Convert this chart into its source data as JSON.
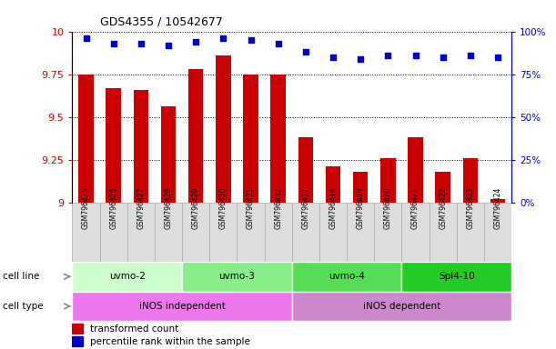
{
  "title": "GDS4355 / 10542677",
  "samples": [
    "GSM796425",
    "GSM796426",
    "GSM796427",
    "GSM796428",
    "GSM796429",
    "GSM796430",
    "GSM796431",
    "GSM796432",
    "GSM796417",
    "GSM796418",
    "GSM796419",
    "GSM796420",
    "GSM796421",
    "GSM796422",
    "GSM796423",
    "GSM796424"
  ],
  "red_values": [
    9.75,
    9.67,
    9.66,
    9.56,
    9.78,
    9.86,
    9.75,
    9.75,
    9.38,
    9.21,
    9.18,
    9.26,
    9.38,
    9.18,
    9.26,
    9.02
  ],
  "blue_values": [
    96,
    93,
    93,
    92,
    94,
    96,
    95,
    93,
    88,
    85,
    84,
    86,
    86,
    85,
    86,
    85
  ],
  "ymin": 9.0,
  "ymax": 10.0,
  "y2min": 0,
  "y2max": 100,
  "yticks": [
    9.0,
    9.25,
    9.5,
    9.75,
    10.0
  ],
  "y2ticks": [
    0,
    25,
    50,
    75,
    100
  ],
  "ytick_labels": [
    "9",
    "9.25",
    "9.5",
    "9.75",
    "10"
  ],
  "y2tick_labels": [
    "0%",
    "25%",
    "50%",
    "75%",
    "100%"
  ],
  "cell_lines": [
    {
      "label": "uvmo-2",
      "start": 0,
      "end": 3,
      "color": "#ccffcc"
    },
    {
      "label": "uvmo-3",
      "start": 4,
      "end": 7,
      "color": "#88ee88"
    },
    {
      "label": "uvmo-4",
      "start": 8,
      "end": 11,
      "color": "#55dd55"
    },
    {
      "label": "Spl4-10",
      "start": 12,
      "end": 15,
      "color": "#22cc22"
    }
  ],
  "cell_types": [
    {
      "label": "iNOS independent",
      "start": 0,
      "end": 7,
      "color": "#ee77ee"
    },
    {
      "label": "iNOS dependent",
      "start": 8,
      "end": 15,
      "color": "#cc88cc"
    }
  ],
  "bar_color": "#cc0000",
  "dot_color": "#0000cc",
  "grid_color": "#000000",
  "sample_box_color": "#dddddd",
  "sample_box_edge": "#aaaaaa",
  "legend_red": "transformed count",
  "legend_blue": "percentile rank within the sample",
  "cell_line_label": "cell line",
  "cell_type_label": "cell type"
}
